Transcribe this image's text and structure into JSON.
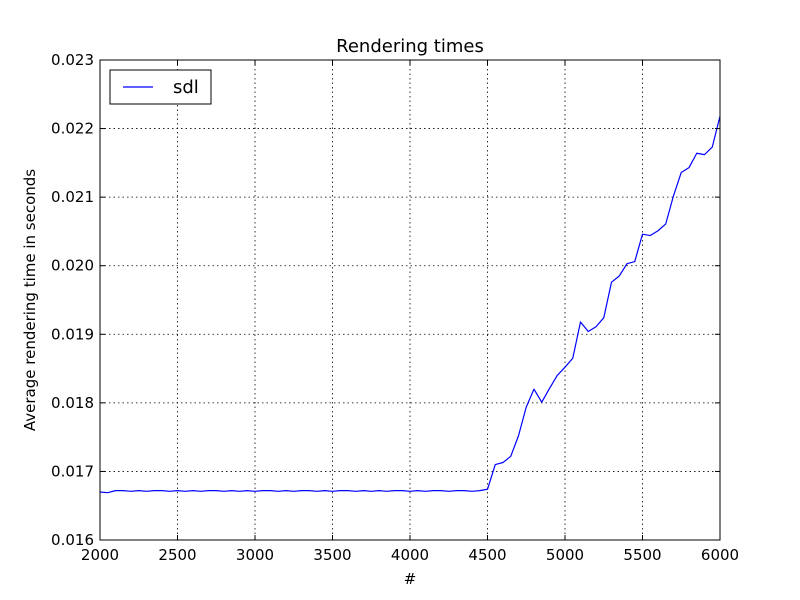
{
  "chart_data": {
    "type": "line",
    "title": "Rendering times",
    "xlabel": "#",
    "ylabel": "Average rendering time in seconds",
    "xlim": [
      2000,
      6000
    ],
    "ylim": [
      0.016,
      0.023
    ],
    "xticks": [
      "2000",
      "2500",
      "3000",
      "3500",
      "4000",
      "4500",
      "5000",
      "5500",
      "6000"
    ],
    "yticks": [
      "0.016",
      "0.017",
      "0.018",
      "0.019",
      "0.020",
      "0.021",
      "0.022",
      "0.023"
    ],
    "grid": true,
    "legend_position": "top-left",
    "series": [
      {
        "name": "sdl",
        "color": "#0000ff",
        "x": [
          2000,
          2050,
          2100,
          2150,
          2200,
          2250,
          2300,
          2350,
          2400,
          2450,
          2500,
          2550,
          2600,
          2650,
          2700,
          2750,
          2800,
          2850,
          2900,
          2950,
          3000,
          3050,
          3100,
          3150,
          3200,
          3250,
          3300,
          3350,
          3400,
          3450,
          3500,
          3550,
          3600,
          3650,
          3700,
          3750,
          3800,
          3850,
          3900,
          3950,
          4000,
          4050,
          4100,
          4150,
          4200,
          4250,
          4300,
          4350,
          4400,
          4450,
          4500,
          4550,
          4600,
          4650,
          4700,
          4750,
          4800,
          4850,
          4900,
          4950,
          5000,
          5050,
          5100,
          5150,
          5200,
          5250,
          5300,
          5350,
          5400,
          5450,
          5500,
          5550,
          5600,
          5650,
          5700,
          5750,
          5800,
          5850,
          5900,
          5950,
          6000
        ],
        "y": [
          0.0167,
          0.01669,
          0.01672,
          0.01672,
          0.01671,
          0.01672,
          0.01671,
          0.01672,
          0.01672,
          0.01671,
          0.01672,
          0.01671,
          0.01672,
          0.01671,
          0.01672,
          0.01672,
          0.01671,
          0.01672,
          0.01671,
          0.01672,
          0.01671,
          0.01672,
          0.01672,
          0.01671,
          0.01672,
          0.01671,
          0.01672,
          0.01672,
          0.01671,
          0.01672,
          0.01671,
          0.01672,
          0.01672,
          0.01671,
          0.01672,
          0.01671,
          0.01672,
          0.01671,
          0.01672,
          0.01672,
          0.01671,
          0.01672,
          0.01671,
          0.01672,
          0.01672,
          0.01671,
          0.01672,
          0.01672,
          0.01671,
          0.01672,
          0.01674,
          0.0171,
          0.01713,
          0.01722,
          0.01752,
          0.01794,
          0.0182,
          0.01801,
          0.01821,
          0.0184,
          0.01852,
          0.01865,
          0.01918,
          0.01904,
          0.01911,
          0.01924,
          0.01976,
          0.01985,
          0.02003,
          0.02006,
          0.02046,
          0.02044,
          0.02051,
          0.02061,
          0.02102,
          0.02136,
          0.02143,
          0.02164,
          0.02162,
          0.02173,
          0.02218
        ]
      }
    ]
  }
}
